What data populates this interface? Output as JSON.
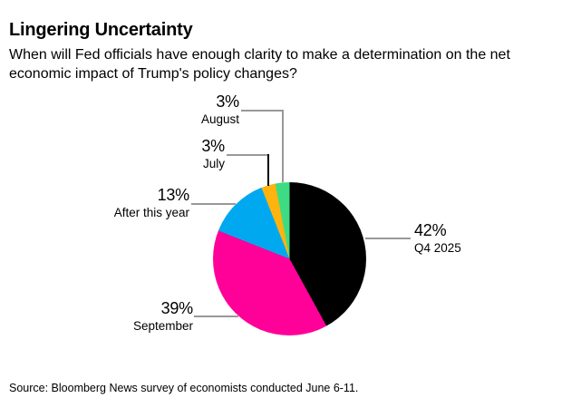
{
  "header": {
    "title": "Lingering Uncertainty",
    "subtitle": "When will Fed officials have enough clarity to make a determination on the net economic impact of Trump's policy changes?"
  },
  "chart_data": {
    "type": "pie",
    "title": "Lingering Uncertainty",
    "question": "When will Fed officials have enough clarity to make a determination on the net economic impact of Trump's policy changes?",
    "start_angle_deg": 0,
    "direction": "clockwise",
    "legend": "labels-with-leader-lines",
    "slices": [
      {
        "label": "Q4 2025",
        "value": 42,
        "pct_label": "42%",
        "color": "#000000"
      },
      {
        "label": "September",
        "value": 39,
        "pct_label": "39%",
        "color": "#FF0099"
      },
      {
        "label": "After this year",
        "value": 13,
        "pct_label": "13%",
        "color": "#00A8F0"
      },
      {
        "label": "July",
        "value": 3,
        "pct_label": "3%",
        "color": "#FFB30F"
      },
      {
        "label": "August",
        "value": 3,
        "pct_label": "3%",
        "color": "#3EDC82"
      }
    ]
  },
  "footer": {
    "source": "Source: Bloomberg News survey of economists conducted June 6-11."
  }
}
